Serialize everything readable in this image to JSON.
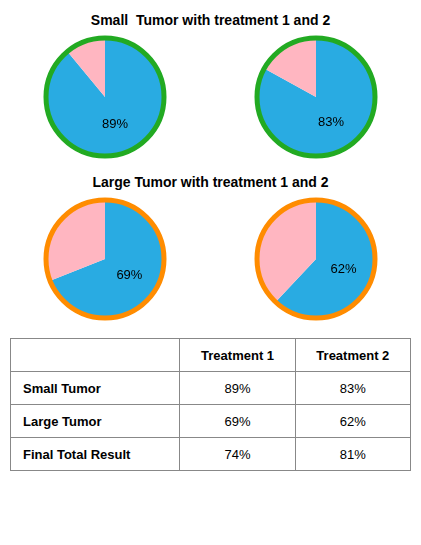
{
  "chart_data": [
    {
      "type": "pie",
      "title": "Small  Tumor with treatment 1 and 2",
      "color": "#22AA22",
      "data_labels": true,
      "series": [
        {
          "values": [
            89,
            11
          ],
          "value_labels": [
            "89%",
            null
          ],
          "colors": [
            "#29ABE2",
            "#FFB6C1"
          ]
        },
        {
          "values": [
            83,
            17
          ],
          "value_labels": [
            "83%",
            null
          ],
          "colors": [
            "#29ABE2",
            "#FFB6C1"
          ]
        }
      ]
    },
    {
      "type": "pie",
      "title": "Large Tumor with treatment 1 and 2",
      "color": "#FF8C00",
      "data_labels": true,
      "series": [
        {
          "values": [
            69,
            31
          ],
          "value_labels": [
            "69%",
            null
          ],
          "colors": [
            "#29ABE2",
            "#FFB6C1"
          ]
        },
        {
          "values": [
            62,
            38
          ],
          "value_labels": [
            "62%",
            null
          ],
          "colors": [
            "#29ABE2",
            "#FFB6C1"
          ]
        }
      ]
    },
    {
      "type": "table",
      "categories": [
        "Small Tumor",
        "Large Tumor",
        "Final Total Result"
      ],
      "series": [
        {
          "name": "Treatment 1",
          "values": [
            89,
            69,
            74
          ],
          "value_labels": [
            "89%",
            "69%",
            "74%"
          ]
        },
        {
          "name": "Treatment 2",
          "values": [
            83,
            62,
            81
          ],
          "value_labels": [
            "83%",
            "62%",
            "81%"
          ]
        }
      ]
    }
  ]
}
